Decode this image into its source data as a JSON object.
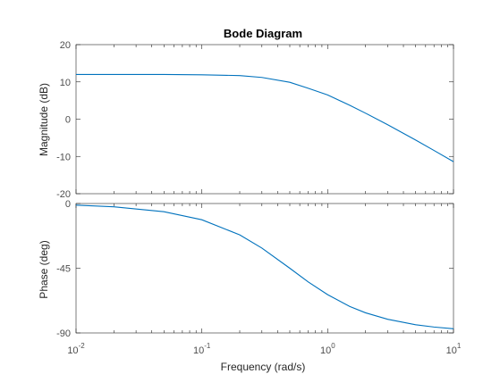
{
  "chart_data": {
    "type": "line",
    "title": "Bode Diagram",
    "xlabel": "Frequency  (rad/s)",
    "x_scale": "log",
    "x_ticks": [
      0.01,
      0.1,
      1,
      10
    ],
    "x_tick_labels": [
      {
        "base": "10",
        "exp": "-2"
      },
      {
        "base": "10",
        "exp": "-1"
      },
      {
        "base": "10",
        "exp": "0"
      },
      {
        "base": "10",
        "exp": "1"
      }
    ],
    "xlim": [
      0.01,
      10
    ],
    "panels": [
      {
        "id": "magnitude",
        "ylabel": "Magnitude (dB)",
        "ylim": [
          -20,
          20
        ],
        "y_ticks": [
          -20,
          -10,
          0,
          10,
          20
        ],
        "y_tick_labels": [
          "-20",
          "-10",
          "0",
          "10",
          "20"
        ],
        "series": [
          {
            "color": "#0072bd",
            "x": [
              0.01,
              0.02,
              0.05,
              0.1,
              0.2,
              0.3,
              0.5,
              0.7,
              1,
              1.5,
              2,
              3,
              5,
              7,
              10
            ],
            "values": [
              12.0,
              12.0,
              12.0,
              11.9,
              11.7,
              11.2,
              9.9,
              8.3,
              6.5,
              3.7,
              1.6,
              -1.5,
              -5.6,
              -8.4,
              -11.4
            ]
          }
        ]
      },
      {
        "id": "phase",
        "ylabel": "Phase (deg)",
        "ylim": [
          -90,
          0
        ],
        "y_ticks": [
          -90,
          -45,
          0
        ],
        "y_tick_labels": [
          "-90",
          "-45",
          "0"
        ],
        "series": [
          {
            "color": "#0072bd",
            "x": [
              0.01,
              0.02,
              0.05,
              0.1,
              0.2,
              0.3,
              0.5,
              0.7,
              1,
              1.5,
              2,
              3,
              5,
              7,
              10
            ],
            "values": [
              -1.1,
              -2.3,
              -5.7,
              -11.3,
              -21.8,
              -31.0,
              -45.0,
              -54.5,
              -63.4,
              -71.6,
              -76.0,
              -80.5,
              -84.3,
              -85.9,
              -87.1
            ]
          }
        ]
      }
    ]
  }
}
